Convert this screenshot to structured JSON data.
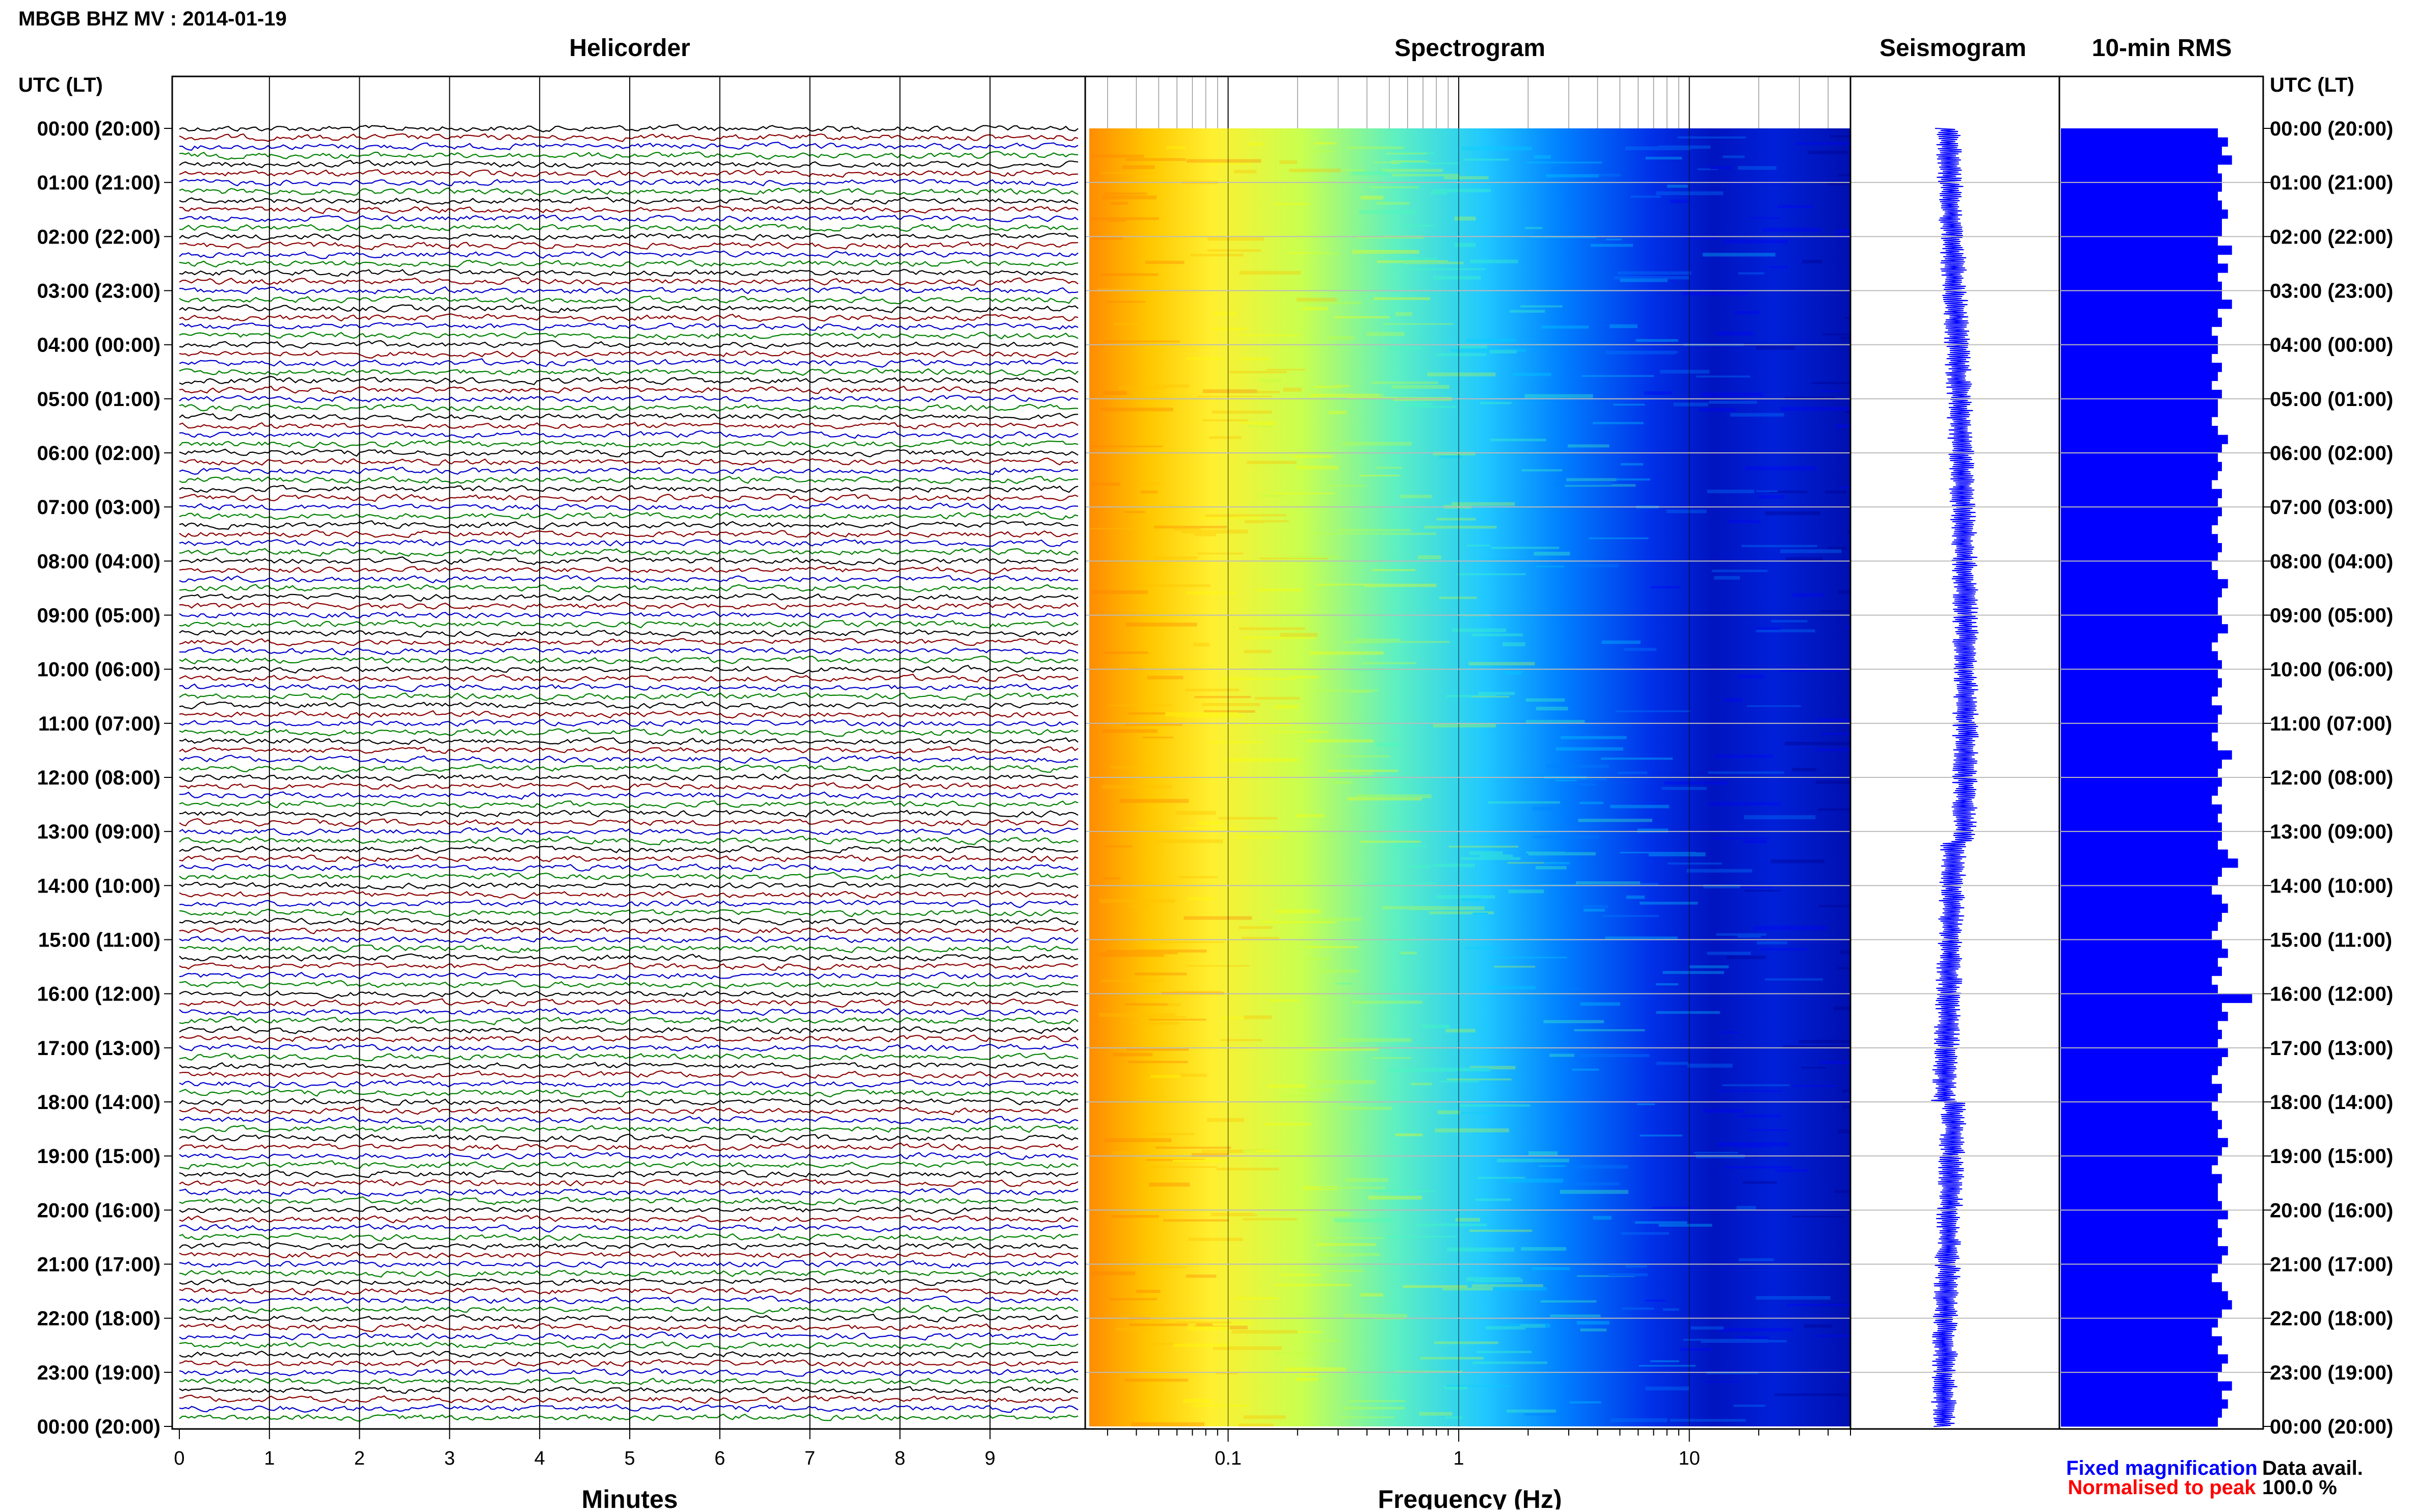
{
  "page": {
    "title": "MBGB BHZ MV : 2014-01-19"
  },
  "panels": {
    "helicorder_title": "Helicorder",
    "spectrogram_title": "Spectrogram",
    "seismogram_title": "Seismogram",
    "rms_title": "10-min RMS"
  },
  "axes": {
    "left_header": "UTC (LT)",
    "right_header": "UTC (LT)",
    "helicorder_xlabel": "Minutes",
    "spectrogram_xlabel": "Frequency (Hz)"
  },
  "legend": {
    "fixed": "Fixed magnification",
    "normalised": "Normalised to peak",
    "fixed_color": "#0000ff",
    "normalised_color": "#ff0000"
  },
  "data_avail": {
    "label": "Data avail.",
    "value": "100.0 %"
  },
  "time_labels": [
    "00:00 (20:00)",
    "01:00 (21:00)",
    "02:00 (22:00)",
    "03:00 (23:00)",
    "04:00 (00:00)",
    "05:00 (01:00)",
    "06:00 (02:00)",
    "07:00 (03:00)",
    "08:00 (04:00)",
    "09:00 (05:00)",
    "10:00 (06:00)",
    "11:00 (07:00)",
    "12:00 (08:00)",
    "13:00 (09:00)",
    "14:00 (10:00)",
    "15:00 (11:00)",
    "16:00 (12:00)",
    "17:00 (13:00)",
    "18:00 (14:00)",
    "19:00 (15:00)",
    "20:00 (16:00)",
    "21:00 (17:00)",
    "22:00 (18:00)",
    "23:00 (19:00)",
    "00:00 (20:00)"
  ],
  "chart_data": [
    {
      "type": "line",
      "panel": "helicorder",
      "title": "Helicorder",
      "xlabel": "Minutes",
      "ylabel": "UTC (LT)",
      "xlim": [
        0,
        10
      ],
      "x_ticks": [
        0,
        1,
        2,
        3,
        4,
        5,
        6,
        7,
        8,
        9
      ],
      "trace_count": 144,
      "trace_minutes": 10,
      "trace_colors": [
        "#000000",
        "#8b0000",
        "#0000cd",
        "#008000"
      ],
      "grid": true
    },
    {
      "type": "heatmap",
      "panel": "spectrogram",
      "title": "Spectrogram",
      "xlabel": "Frequency (Hz)",
      "x_scale": "log",
      "xlim": [
        0.025,
        50
      ],
      "x_tick_labels": [
        "0.1",
        "1",
        "10"
      ],
      "x_tick_values": [
        0.1,
        1,
        10
      ],
      "colormap": [
        "#00008b",
        "#0000ff",
        "#0080ff",
        "#00d0ff",
        "#40ffc0",
        "#c0ff40",
        "#ffff00",
        "#ffc000",
        "#ff8000"
      ],
      "note_colors": "low frequencies high power (orange/yellow), above ~2 Hz low power (blue)",
      "grid": true
    },
    {
      "type": "line",
      "panel": "seismogram",
      "title": "Seismogram",
      "color": "#0000ff"
    },
    {
      "type": "bar",
      "panel": "rms",
      "title": "10-min RMS",
      "orientation": "horizontal",
      "color": "#0000ff",
      "bins_per_hour": 6,
      "values": [
        0.78,
        0.83,
        0.8,
        0.85,
        0.78,
        0.8,
        0.8,
        0.78,
        0.8,
        0.83,
        0.8,
        0.8,
        0.78,
        0.85,
        0.78,
        0.83,
        0.78,
        0.8,
        0.8,
        0.85,
        0.78,
        0.8,
        0.75,
        0.78,
        0.78,
        0.75,
        0.8,
        0.78,
        0.75,
        0.8,
        0.78,
        0.78,
        0.75,
        0.78,
        0.83,
        0.8,
        0.78,
        0.8,
        0.78,
        0.75,
        0.8,
        0.78,
        0.8,
        0.78,
        0.75,
        0.78,
        0.8,
        0.78,
        0.75,
        0.78,
        0.83,
        0.8,
        0.78,
        0.78,
        0.8,
        0.83,
        0.78,
        0.75,
        0.78,
        0.8,
        0.78,
        0.8,
        0.78,
        0.75,
        0.8,
        0.78,
        0.78,
        0.75,
        0.78,
        0.85,
        0.8,
        0.78,
        0.8,
        0.78,
        0.75,
        0.8,
        0.78,
        0.8,
        0.8,
        0.78,
        0.83,
        0.88,
        0.8,
        0.78,
        0.75,
        0.8,
        0.83,
        0.8,
        0.78,
        0.75,
        0.8,
        0.83,
        0.78,
        0.8,
        0.75,
        0.78,
        0.95,
        0.8,
        0.83,
        0.78,
        0.8,
        0.78,
        0.83,
        0.8,
        0.78,
        0.75,
        0.8,
        0.78,
        0.75,
        0.78,
        0.8,
        0.78,
        0.83,
        0.8,
        0.78,
        0.75,
        0.8,
        0.78,
        0.78,
        0.8,
        0.83,
        0.78,
        0.8,
        0.78,
        0.83,
        0.8,
        0.78,
        0.75,
        0.8,
        0.83,
        0.85,
        0.8,
        0.78,
        0.75,
        0.8,
        0.78,
        0.83,
        0.8,
        0.78,
        0.85,
        0.8,
        0.83,
        0.8,
        0.78
      ]
    }
  ]
}
